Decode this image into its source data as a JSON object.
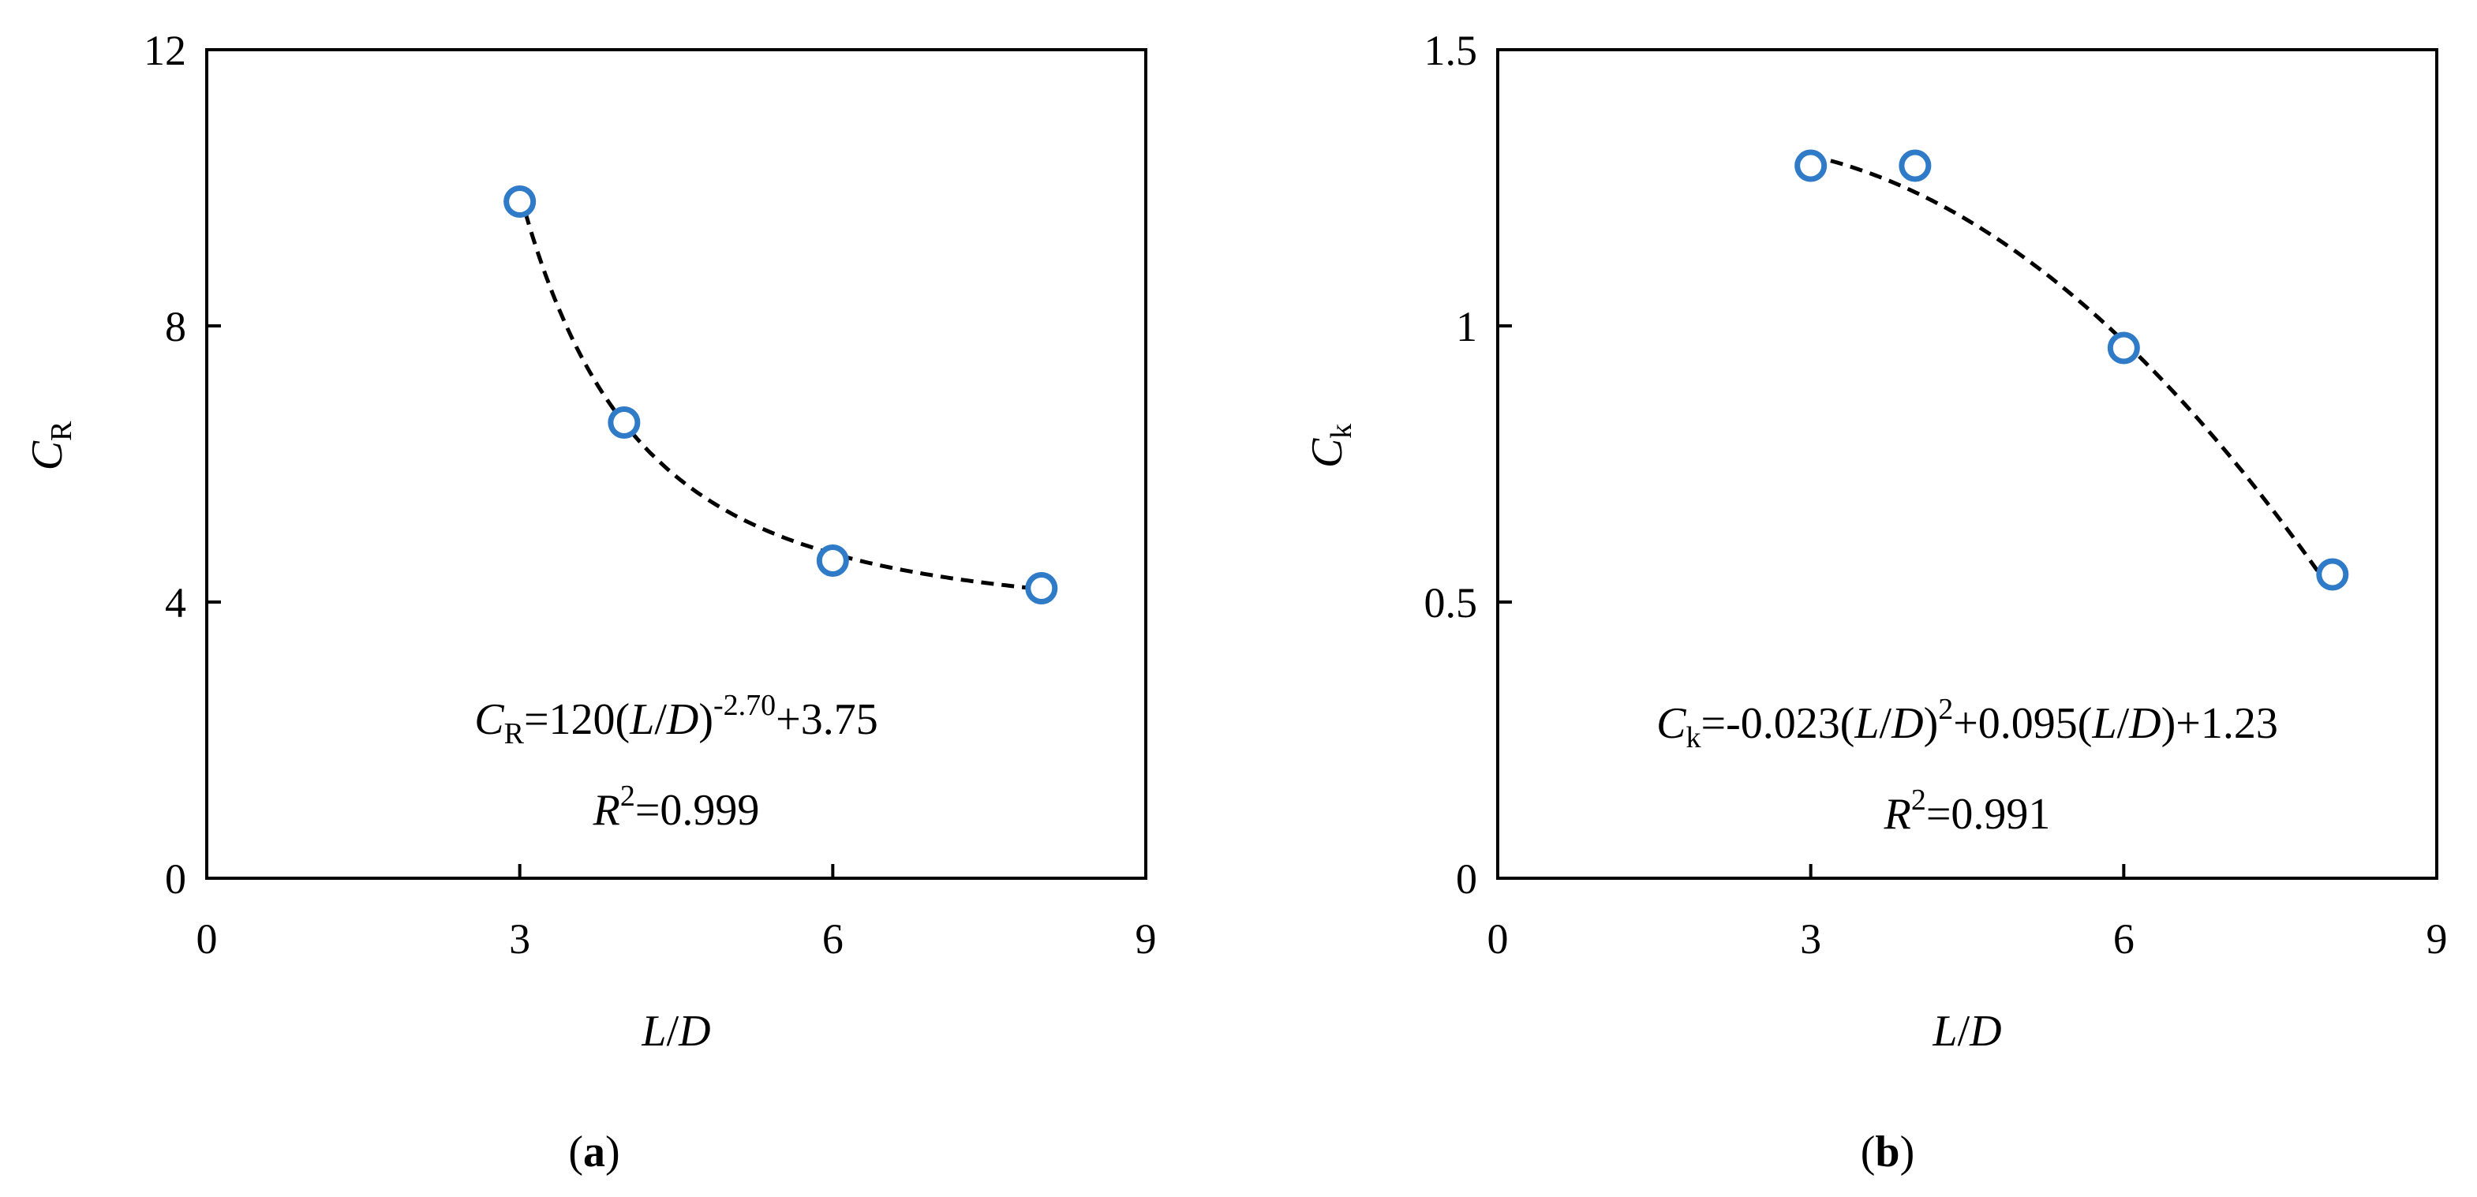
{
  "chart_data": [
    {
      "type": "scatter",
      "panel_label": "(a)",
      "panel_letter": "a",
      "xlabel": "L/D",
      "ylabel": "C_R",
      "ylabel_main": "C",
      "ylabel_sub": "R",
      "xlim": [
        0,
        9
      ],
      "ylim": [
        0,
        12
      ],
      "xticks": [
        "0",
        "3",
        "6",
        "9"
      ],
      "yticks": [
        "0",
        "4",
        "8",
        "12"
      ],
      "grid": false,
      "x": [
        3,
        4,
        6,
        8
      ],
      "y": [
        9.8,
        6.6,
        4.6,
        4.2
      ],
      "marker_color": "#2f7bc7",
      "fit": {
        "style": "dashed",
        "color": "#000000",
        "model": "power",
        "coefficients": {
          "a": 120,
          "b": -2.7,
          "c": 3.75
        },
        "x_range": [
          3,
          8
        ]
      },
      "equation": {
        "lhs_main": "C",
        "lhs_sub": "R",
        "part1": "=120(",
        "L": "L",
        "slash": "/",
        "D": "D",
        "close": ")",
        "exp": "-2.70",
        "part2": "+3.75"
      },
      "r2": {
        "R": "R",
        "sup": "2",
        "value": "=0.999"
      }
    },
    {
      "type": "scatter",
      "panel_label": "(b)",
      "panel_letter": "b",
      "xlabel": "L/D",
      "ylabel": "C_k",
      "ylabel_main": "C",
      "ylabel_sub": "k",
      "xlim": [
        0,
        9
      ],
      "ylim": [
        0,
        1.5
      ],
      "xticks": [
        "0",
        "3",
        "6",
        "9"
      ],
      "yticks": [
        "0",
        "0.5",
        "1",
        "1.5"
      ],
      "grid": false,
      "x": [
        3,
        4,
        6,
        8
      ],
      "y": [
        1.29,
        1.29,
        0.96,
        0.55
      ],
      "marker_color": "#2f7bc7",
      "fit": {
        "style": "dashed",
        "color": "#000000",
        "model": "quadratic",
        "coefficients": {
          "a": -0.023,
          "b": 0.095,
          "c": 1.23
        },
        "x_range": [
          3,
          8
        ]
      },
      "equation": {
        "lhs_main": "C",
        "lhs_sub": "k",
        "part1": "=-0.023(",
        "L": "L",
        "slash": "/",
        "D": "D",
        "close": ")",
        "sup": "2",
        "part2": "+0.095(",
        "L2": "L",
        "slash2": "/",
        "D2": "D",
        "close2": ")+1.23"
      },
      "r2": {
        "R": "R",
        "sup": "2",
        "value": "=0.991"
      }
    }
  ]
}
